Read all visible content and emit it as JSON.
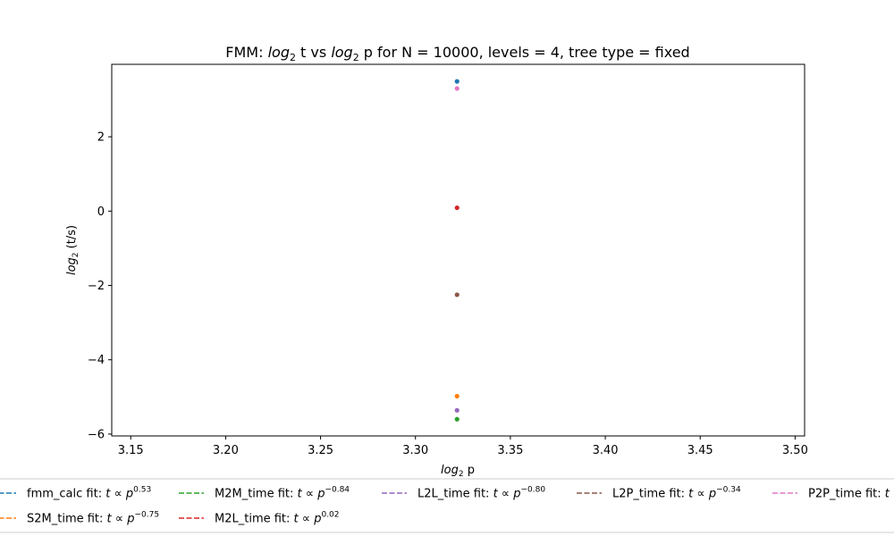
{
  "chart_data": {
    "type": "scatter",
    "title": {
      "prefix": "FMM: ",
      "t1": "log",
      "t1_sub": "2",
      "t2": " t vs ",
      "t3": "log",
      "t3_sub": "2",
      "t4": " p for N = 10000, levels = 4, tree type = fixed"
    },
    "xlabel": {
      "main": "log",
      "sub": "2",
      "rest": " p"
    },
    "ylabel": {
      "main": "log",
      "sub": "2",
      "rest": " (t/s)"
    },
    "xlim": [
      3.14,
      3.505
    ],
    "ylim": [
      -6.05,
      3.95
    ],
    "x_ticks": [
      3.15,
      3.2,
      3.25,
      3.3,
      3.35,
      3.4,
      3.45,
      3.5
    ],
    "x_tick_labels": [
      "3.15",
      "3.20",
      "3.25",
      "3.30",
      "3.35",
      "3.40",
      "3.45",
      "3.50"
    ],
    "y_ticks": [
      2,
      0,
      -2,
      -4,
      -6
    ],
    "y_tick_labels": [
      "2",
      "0",
      "−2",
      "−4",
      "−6"
    ],
    "grid": false,
    "legend_position": "bottom",
    "series": [
      {
        "name": "fmm_calc",
        "color": "#1f77b4",
        "x": [
          3.3219
        ],
        "y": [
          3.49
        ],
        "fit_label": "fmm_calc fit: ",
        "exponent": "0.53"
      },
      {
        "name": "S2M_time",
        "color": "#ff7f0e",
        "x": [
          3.3219
        ],
        "y": [
          -4.98
        ],
        "fit_label": "S2M_time fit: ",
        "exponent": "−0.75"
      },
      {
        "name": "M2M_time",
        "color": "#2ca02c",
        "x": [
          3.3219
        ],
        "y": [
          -5.6
        ],
        "fit_label": "M2M_time fit: ",
        "exponent": "−0.84"
      },
      {
        "name": "M2L_time",
        "color": "#d62728",
        "x": [
          3.3219
        ],
        "y": [
          0.09
        ],
        "fit_label": "M2L_time fit: ",
        "exponent": "0.02"
      },
      {
        "name": "L2L_time",
        "color": "#9467bd",
        "x": [
          3.3219
        ],
        "y": [
          -5.36
        ],
        "fit_label": "L2L_time fit: ",
        "exponent": "−0.80"
      },
      {
        "name": "L2P_time",
        "color": "#8c564b",
        "x": [
          3.3219
        ],
        "y": [
          -2.25
        ],
        "fit_label": "L2P_time fit: ",
        "exponent": "−0.34"
      },
      {
        "name": "P2P_time",
        "color": "#e377c2",
        "x": [
          3.3219
        ],
        "y": [
          3.3
        ],
        "fit_label": "P2P_time fit: ",
        "exponent": ""
      }
    ],
    "fit_formula": {
      "t": "t",
      "prop": " ∝ ",
      "p": "p"
    }
  }
}
